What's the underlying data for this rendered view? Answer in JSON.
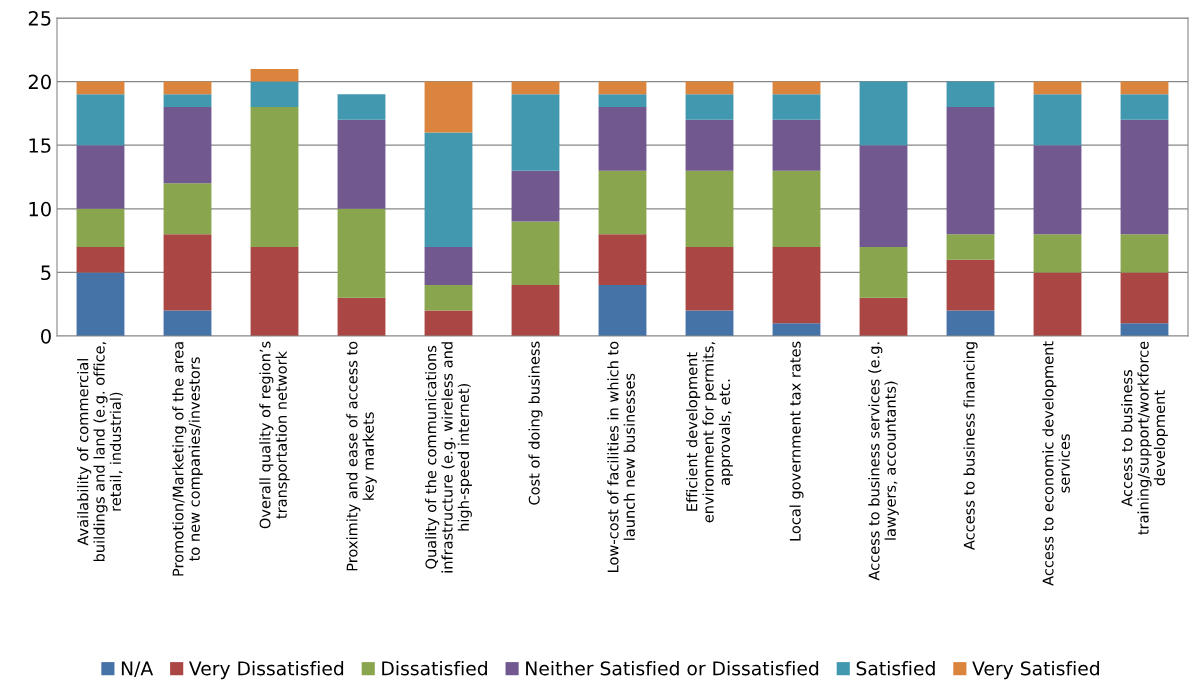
{
  "chart_data": {
    "type": "bar",
    "stacked": true,
    "categories": [
      "Availability of commercial\nbuildings and land (e.g. office,\nretail, industrial)",
      "Promotion/Marketing of the area\nto new companies/investors",
      "Overall quality of region’s\ntransportation network",
      "Proximity and ease of access to\nkey markets",
      "Quality of the communications\ninfrastructure (e.g. wireless and\nhigh-speed internet)",
      "Cost of doing business",
      "Low-cost of facilities in which to\nlaunch new businesses",
      "Efficient development\nenvironment for permits,\napprovals, etc.",
      "Local government tax rates",
      "Access to business services (e.g.\nlawyers, accountants)",
      "Access to business financing",
      "Access to economic development\nservices",
      "Access to business\ntraining/support/workforce\ndevelopment"
    ],
    "series": [
      {
        "name": "N/A",
        "color": "#4572a7",
        "values": [
          5,
          2,
          0,
          0,
          0,
          0,
          4,
          2,
          1,
          0,
          2,
          0,
          1
        ]
      },
      {
        "name": "Very Dissatisfied",
        "color": "#aa4643",
        "values": [
          2,
          6,
          7,
          3,
          2,
          4,
          4,
          5,
          6,
          3,
          4,
          5,
          4
        ]
      },
      {
        "name": "Dissatisfied",
        "color": "#89a54e",
        "values": [
          3,
          4,
          11,
          7,
          2,
          5,
          5,
          6,
          6,
          4,
          2,
          3,
          3
        ]
      },
      {
        "name": "Neither Satisfied or Dissatisfied",
        "color": "#71588f",
        "values": [
          5,
          6,
          0,
          7,
          3,
          4,
          5,
          4,
          4,
          8,
          10,
          7,
          9
        ]
      },
      {
        "name": "Satisfied",
        "color": "#4198af",
        "values": [
          4,
          1,
          2,
          2,
          9,
          6,
          1,
          2,
          2,
          5,
          2,
          4,
          2
        ]
      },
      {
        "name": "Very Satisfied",
        "color": "#db843d",
        "values": [
          1,
          1,
          1,
          0,
          4,
          1,
          1,
          1,
          1,
          0,
          0,
          1,
          1
        ]
      }
    ],
    "ylim": [
      0,
      25
    ],
    "yticks": [
      0,
      5,
      10,
      15,
      20,
      25
    ],
    "grid": "y",
    "legend": "bottom"
  }
}
